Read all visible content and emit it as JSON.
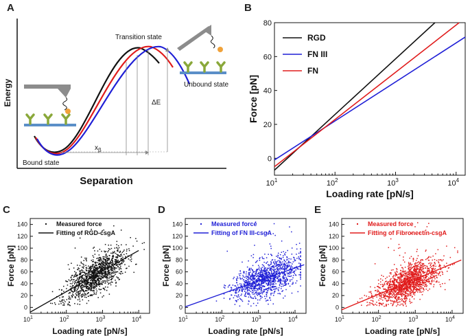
{
  "colors": {
    "rgd": "#111111",
    "fn3": "#1f1fd6",
    "fn": "#e01b1b",
    "ligand": "#8aa83a",
    "surface": "#5b8fc8",
    "tip": "#8c8c8c",
    "bead": "#f0a23a"
  },
  "panels": {
    "a": {
      "letter": "A",
      "xlabel": "Separation",
      "ylabel": "Energy",
      "transition_label": "Transition state",
      "unbound_label": "Unbound state",
      "bound_label": "Bound state",
      "xb_label": "x",
      "xb_sub": "β",
      "dE_label": "ΔE"
    },
    "b": {
      "letter": "B"
    },
    "c": {
      "letter": "C"
    },
    "d": {
      "letter": "D"
    },
    "e": {
      "letter": "E"
    }
  },
  "chart_data": [
    {
      "id": "B",
      "type": "line",
      "xscale": "log",
      "xlabel": "Loading rate [pN/s]",
      "ylabel": "Force [pN]",
      "xlim_log10": [
        1,
        4.15
      ],
      "ylim": [
        -10,
        80
      ],
      "yticks": [
        0,
        20,
        40,
        60,
        80
      ],
      "xtick_exps": [
        1,
        2,
        3,
        4
      ],
      "legend_position": "top-left",
      "series": [
        {
          "name": "RGD",
          "color": "#111111",
          "log10_x": [
            1.0,
            3.65
          ],
          "y": [
            -7,
            80
          ]
        },
        {
          "name": "FN III",
          "color": "#1f1fd6",
          "log10_x": [
            1.0,
            4.15
          ],
          "y": [
            -1,
            71.5
          ]
        },
        {
          "name": "FN",
          "color": "#e01b1b",
          "log10_x": [
            1.0,
            4.05
          ],
          "y": [
            -5,
            80
          ]
        }
      ]
    },
    {
      "id": "C",
      "type": "scatter",
      "xscale": "log",
      "xlabel": "Loading rate [pN/s]",
      "ylabel": "Force [pN]",
      "xlim_log10": [
        1,
        4.3
      ],
      "ylim": [
        -10,
        150
      ],
      "yticks": [
        0,
        20,
        40,
        60,
        80,
        100,
        120,
        140
      ],
      "xtick_exps": [
        1,
        2,
        3,
        4
      ],
      "legend_position": "top-left",
      "legend": [
        "Measured force",
        "Fitting of RGD-csgA"
      ],
      "point_color": "#111111",
      "points_note": "approximately 1300 measured points, log10 loading rate centred near 2.8, force centred near 50",
      "fit": {
        "log10_x": [
          1.0,
          4.0
        ],
        "y": [
          -8,
          96
        ]
      }
    },
    {
      "id": "D",
      "type": "scatter",
      "xscale": "log",
      "xlabel": "Loading rate [pN/s]",
      "ylabel": "Force [pN]",
      "xlim_log10": [
        1,
        4.3
      ],
      "ylim": [
        -10,
        150
      ],
      "yticks": [
        0,
        20,
        40,
        60,
        80,
        100,
        120,
        140
      ],
      "xtick_exps": [
        1,
        2,
        3,
        4
      ],
      "legend_position": "top-left",
      "legend": [
        "Measured force",
        "Fitting of FN III-csgA"
      ],
      "point_color": "#1f1fd6",
      "points_note": "approximately 1200 measured points, log10 loading rate centred near 3.2, force centred near 45",
      "fit": {
        "log10_x": [
          1.0,
          4.25
        ],
        "y": [
          1,
          72
        ]
      }
    },
    {
      "id": "E",
      "type": "scatter",
      "xscale": "log",
      "xlabel": "Loading rate [pN/s]",
      "ylabel": "Force [pN]",
      "xlim_log10": [
        1,
        4.3
      ],
      "ylim": [
        -10,
        150
      ],
      "yticks": [
        0,
        20,
        40,
        60,
        80,
        100,
        120,
        140
      ],
      "xtick_exps": [
        1,
        2,
        3,
        4
      ],
      "legend_position": "top-left",
      "legend": [
        "Measured force",
        "Fitting of Fibronectin-csgA"
      ],
      "point_color": "#e01b1b",
      "points_note": "approximately 1500 measured points, log10 loading rate centred near 2.8, force centred near 42",
      "fit": {
        "log10_x": [
          1.0,
          4.25
        ],
        "y": [
          -4,
          80
        ]
      }
    }
  ]
}
